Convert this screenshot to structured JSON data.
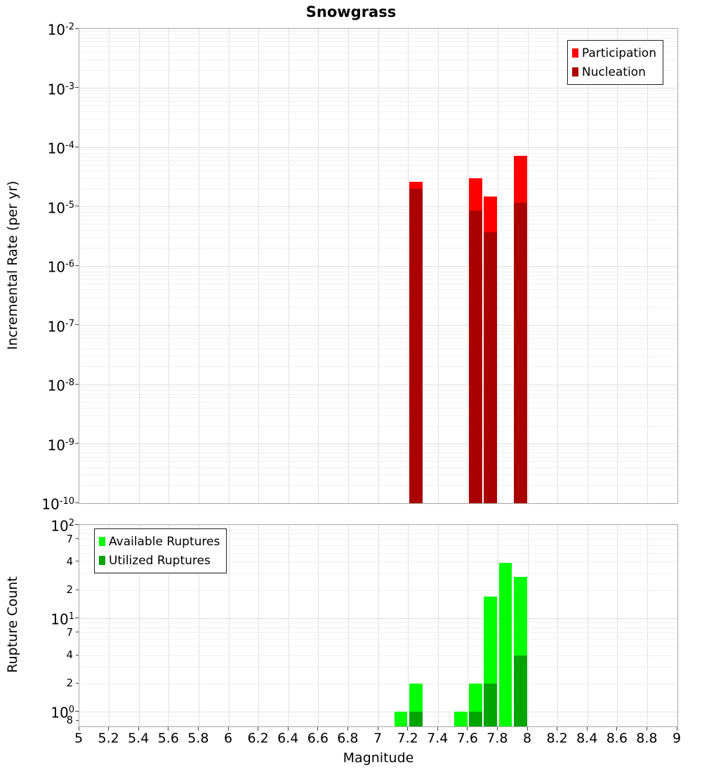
{
  "title": "Snowgrass",
  "colors": {
    "participation": "#ff0000",
    "nucleation": "#aa0000",
    "available": "#00ff00",
    "utilized": "#00a400",
    "grid_major": "#e0e0e0",
    "grid_minor": "#f0f0f0",
    "panel_border": "#a6a6a6",
    "legend_border": "#222222"
  },
  "chart_data": [
    {
      "type": "bar",
      "panel": "top",
      "title": "Snowgrass",
      "ylabel": "Incremental Rate (per yr)",
      "xlabel": "",
      "yscale": "log",
      "ylim": [
        1e-10,
        0.01
      ],
      "xlim": [
        5,
        9
      ],
      "grid": true,
      "bin_width": 0.1,
      "y_tick_exponents": [
        -2,
        -3,
        -4,
        -5,
        -6,
        -7,
        -8,
        -9,
        -10
      ],
      "legend": {
        "position": "top-right",
        "items": [
          {
            "label": "Participation",
            "color": "#ff0000"
          },
          {
            "label": "Nucleation",
            "color": "#aa0000"
          }
        ]
      },
      "series": [
        {
          "name": "Participation",
          "color": "#ff0000",
          "points": [
            [
              7.25,
              2.6e-05
            ],
            [
              7.65,
              3e-05
            ],
            [
              7.75,
              1.5e-05
            ],
            [
              7.95,
              7.2e-05
            ]
          ]
        },
        {
          "name": "Nucleation",
          "color": "#aa0000",
          "points": [
            [
              7.25,
              2e-05
            ],
            [
              7.65,
              8.5e-06
            ],
            [
              7.75,
              3.7e-06
            ],
            [
              7.95,
              1.15e-05
            ]
          ]
        }
      ]
    },
    {
      "type": "bar",
      "panel": "bottom",
      "title": "",
      "ylabel": "Rupture Count",
      "xlabel": "Magnitude",
      "yscale": "log",
      "ylim": [
        0.7,
        100
      ],
      "xlim": [
        5,
        9
      ],
      "grid": true,
      "bin_width": 0.1,
      "y_tick_exponents": [
        2,
        1,
        0
      ],
      "y_minor_tick_labels": [
        {
          "value": 70,
          "label": "7"
        },
        {
          "value": 40,
          "label": "4"
        },
        {
          "value": 20,
          "label": "2"
        },
        {
          "value": 7,
          "label": "7"
        },
        {
          "value": 4,
          "label": "4"
        },
        {
          "value": 2,
          "label": "2"
        },
        {
          "value": 0.8,
          "label": "8"
        }
      ],
      "x_tick_labels": [
        "5",
        "5.2",
        "5.4",
        "5.6",
        "5.8",
        "6",
        "6.2",
        "6.4",
        "6.6",
        "6.8",
        "7",
        "7.2",
        "7.4",
        "7.6",
        "7.8",
        "8",
        "8.2",
        "8.4",
        "8.6",
        "8.8",
        "9"
      ],
      "x_tick_step": 0.2,
      "legend": {
        "position": "top-left",
        "items": [
          {
            "label": "Available Ruptures",
            "color": "#00ff00"
          },
          {
            "label": "Utilized Ruptures",
            "color": "#00a400"
          }
        ]
      },
      "series": [
        {
          "name": "Available Ruptures",
          "color": "#00ff00",
          "points": [
            [
              7.15,
              1
            ],
            [
              7.25,
              2
            ],
            [
              7.55,
              1
            ],
            [
              7.65,
              2
            ],
            [
              7.75,
              17
            ],
            [
              7.85,
              39
            ],
            [
              7.95,
              28
            ]
          ]
        },
        {
          "name": "Utilized Ruptures",
          "color": "#00a400",
          "points": [
            [
              7.25,
              1
            ],
            [
              7.65,
              1
            ],
            [
              7.75,
              2
            ],
            [
              7.95,
              4
            ]
          ]
        }
      ]
    }
  ]
}
